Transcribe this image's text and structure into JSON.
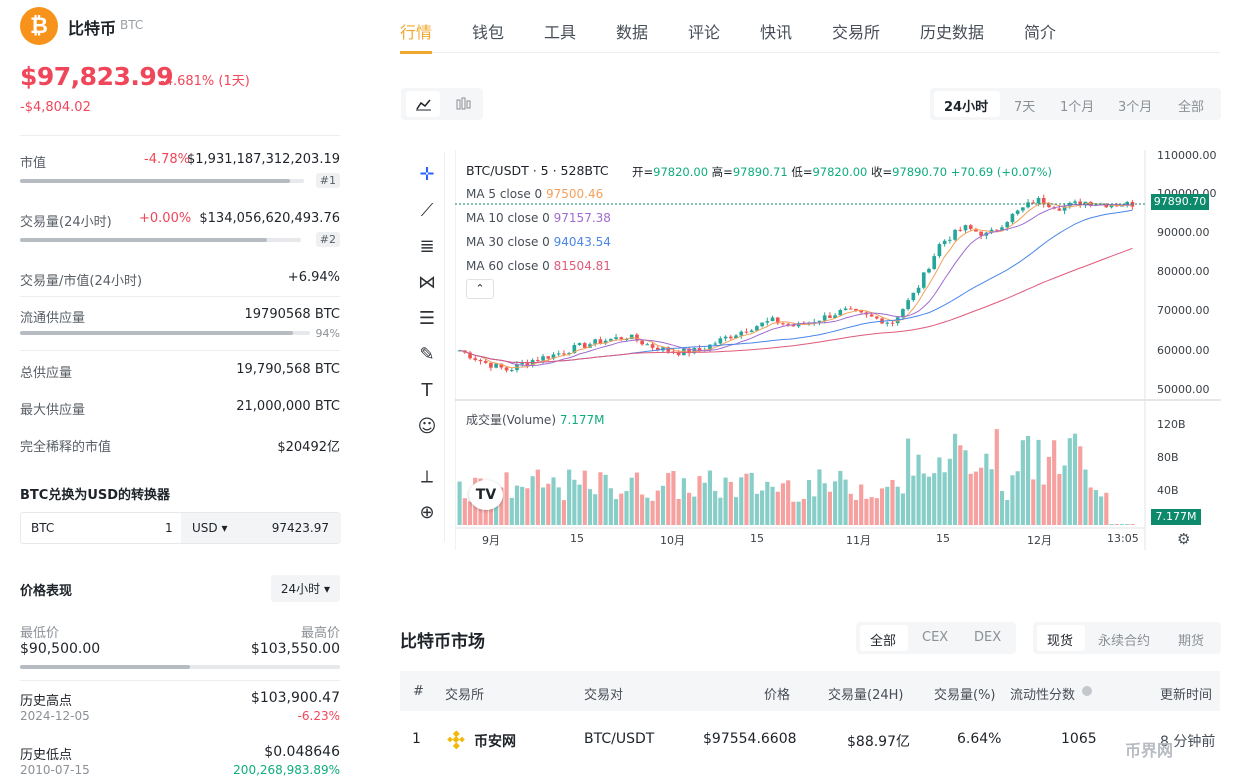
{
  "coin": {
    "name": "比特币",
    "symbol": "BTC",
    "logo_glyph": "₿",
    "price": "$97,823.99",
    "change": "-4.681% (1天)",
    "diff": "-$4,804.02"
  },
  "stats": {
    "market_cap": {
      "label": "市值",
      "pct": "-4.78%",
      "value": "$1,931,187,312,203.19",
      "rank": "#1",
      "bar_fraction": 0.95
    },
    "volume": {
      "label": "交易量(24小时)",
      "pct": "+0.00%",
      "value": "$134,056,620,493.76",
      "rank": "#2",
      "bar_fraction": 0.88
    },
    "vol_mcap": {
      "label": "交易量/市值(24小时)",
      "value": "+6.94%"
    },
    "circ": {
      "label": "流通供应量",
      "value": "19790568 BTC",
      "pct": "94%",
      "bar_fraction": 0.94
    },
    "total": {
      "label": "总供应量",
      "value": "19,790,568 BTC"
    },
    "max": {
      "label": "最大供应量",
      "value": "21,000,000 BTC"
    },
    "fdv": {
      "label": "完全稀释的市值",
      "value": "$20492亿"
    }
  },
  "converter": {
    "title": "BTC兑换为USD的转换器",
    "from": "BTC",
    "amount": "1",
    "to": "USD ▾",
    "result": "97423.97"
  },
  "perf": {
    "title": "价格表现",
    "range_select": "24小时 ▾",
    "low_label": "最低价",
    "high_label": "最高价",
    "low": "$90,500.00",
    "high": "$103,550.00",
    "bar_fraction": 0.53,
    "ath_label": "历史高点",
    "ath_date": "2024-12-05",
    "ath": "$103,900.47",
    "ath_pct": "-6.23%",
    "atl_label": "历史低点",
    "atl_date": "2010-07-15",
    "atl": "$0.048646",
    "atl_pct": "200,268,983.89%"
  },
  "tabs": [
    "行情",
    "钱包",
    "工具",
    "数据",
    "评论",
    "快讯",
    "交易所",
    "历史数据",
    "简介"
  ],
  "ranges": [
    "24小时",
    "7天",
    "1个月",
    "3个月",
    "全部"
  ],
  "chart": {
    "symbol_line": "BTC/USDT · 5 · 528BTC",
    "o_label": "开=",
    "o": "97820.00",
    "h_label": "高=",
    "h": "97890.71",
    "l_label": "低=",
    "l": "97820.00",
    "c_label": "收=",
    "c": "97890.70",
    "chg": "+70.69 (+0.07%)",
    "ma": [
      {
        "label": "MA 5 close 0",
        "value": "97500.46",
        "color": "#f5a05a"
      },
      {
        "label": "MA 10 close 0",
        "value": "97157.38",
        "color": "#a06bd0"
      },
      {
        "label": "MA 30 close 0",
        "value": "94043.54",
        "color": "#4a86e8"
      },
      {
        "label": "MA 60 close 0",
        "value": "81504.81",
        "color": "#e05a7a"
      }
    ],
    "vol_label": "成交量(Volume)",
    "vol_value": "7.177M",
    "last_price": "97890.70",
    "last_vol": "7.177M",
    "y_ticks": [
      "110000.00",
      "100000.00",
      "90000.00",
      "80000.00",
      "70000.00",
      "60000.00",
      "50000.00"
    ],
    "vol_ticks": [
      "120B",
      "80B",
      "40B"
    ],
    "x_ticks": [
      "9月",
      "15",
      "10月",
      "15",
      "11月",
      "15",
      "12月",
      "13:05"
    ],
    "up_color": "#26a69a",
    "down_color": "#ef5350"
  },
  "chart_data": {
    "type": "candlestick",
    "title": "BTC/USDT · 5 · 528BTC",
    "ylim": [
      50000,
      110000
    ],
    "close_path": [
      61000,
      58000,
      56000,
      58500,
      60000,
      62000,
      63500,
      64500,
      62000,
      60500,
      61000,
      64000,
      66500,
      68500,
      67000,
      69000,
      71000,
      69500,
      68000,
      76000,
      88000,
      92000,
      90000,
      95000,
      99000,
      97000,
      98500,
      97800,
      97890
    ],
    "volume_ylim": [
      0,
      140
    ]
  },
  "market": {
    "title": "比特币市场",
    "seg1": [
      "全部",
      "CEX",
      "DEX"
    ],
    "seg2": [
      "现货",
      "永续合约",
      "期货"
    ],
    "headers": [
      "#",
      "交易所",
      "交易对",
      "价格",
      "交易量(24H)",
      "交易量(%)",
      "流动性分数",
      "更新时间"
    ],
    "rows": [
      {
        "rank": "1",
        "exchange": "币安网",
        "pair": "BTC/USDT",
        "price": "$97554.6608",
        "vol": "$88.97亿",
        "pct": "6.64%",
        "score": "1065",
        "updated": "8 分钟前"
      }
    ],
    "watermark": "币界网"
  }
}
